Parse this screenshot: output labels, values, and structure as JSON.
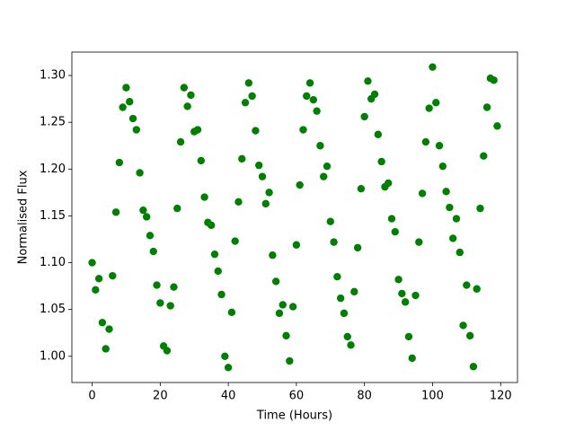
{
  "chart_data": {
    "type": "scatter",
    "xlabel": "Time (Hours)",
    "ylabel": "Normalised Flux",
    "color": "#008000",
    "x": [
      0,
      1,
      2,
      3,
      4,
      5,
      6,
      7,
      8,
      9,
      10,
      11,
      12,
      13,
      14,
      15,
      16,
      17,
      18,
      19,
      20,
      21,
      22,
      23,
      24,
      25,
      26,
      27,
      28,
      29,
      30,
      31,
      32,
      33,
      34,
      35,
      36,
      37,
      38,
      39,
      40,
      41,
      42,
      43,
      44,
      45,
      46,
      47,
      48,
      49,
      50,
      51,
      52,
      53,
      54,
      55,
      56,
      57,
      58,
      59,
      60,
      61,
      62,
      63,
      64,
      65,
      66,
      67,
      68,
      69,
      70,
      71,
      72,
      73,
      74,
      75,
      76,
      77,
      78,
      79,
      80,
      81,
      82,
      83,
      84,
      85,
      86,
      87,
      88,
      89,
      90,
      91,
      92,
      93,
      94,
      95,
      96,
      97,
      98,
      99,
      100,
      101,
      102,
      103,
      104,
      105,
      106,
      107,
      108,
      109,
      110,
      111,
      112,
      113,
      114,
      115,
      116,
      117,
      118,
      119
    ],
    "values": [
      1.1,
      1.071,
      1.083,
      1.036,
      1.008,
      1.029,
      1.086,
      1.154,
      1.207,
      1.266,
      1.287,
      1.272,
      1.254,
      1.242,
      1.196,
      1.156,
      1.149,
      1.129,
      1.112,
      1.076,
      1.057,
      1.011,
      1.006,
      1.054,
      1.074,
      1.158,
      1.229,
      1.287,
      1.267,
      1.279,
      1.24,
      1.242,
      1.209,
      1.17,
      1.143,
      1.14,
      1.109,
      1.091,
      1.066,
      1.0,
      0.988,
      1.047,
      1.123,
      1.165,
      1.211,
      1.271,
      1.292,
      1.278,
      1.241,
      1.204,
      1.192,
      1.163,
      1.175,
      1.108,
      1.08,
      1.046,
      1.055,
      1.022,
      0.995,
      1.053,
      1.119,
      1.183,
      1.242,
      1.278,
      1.292,
      1.274,
      1.262,
      1.225,
      1.192,
      1.203,
      1.144,
      1.122,
      1.085,
      1.062,
      1.046,
      1.021,
      1.012,
      1.069,
      1.116,
      1.179,
      1.256,
      1.294,
      1.275,
      1.28,
      1.237,
      1.208,
      1.181,
      1.185,
      1.147,
      1.133,
      1.082,
      1.067,
      1.058,
      1.021,
      0.998,
      1.065,
      1.122,
      1.174,
      1.229,
      1.265,
      1.309,
      1.271,
      1.225,
      1.203,
      1.176,
      1.159,
      1.126,
      1.147,
      1.111,
      1.033,
      1.076,
      1.022,
      0.989,
      1.072,
      1.158,
      1.214,
      1.266,
      1.297,
      1.295,
      1.246
    ],
    "xlim": [
      -5.95,
      124.95
    ],
    "xticks": [
      0,
      20,
      40,
      60,
      80,
      100,
      120
    ],
    "ylim": [
      0.972,
      1.325
    ],
    "yticks": [
      {
        "value": 1,
        "label": "1.00"
      },
      1.05,
      {
        "value": 1.1,
        "label": "1.10"
      },
      1.15,
      {
        "value": 1.2,
        "label": "1.20"
      },
      1.25,
      {
        "value": 1.3,
        "label": "1.30"
      }
    ]
  }
}
